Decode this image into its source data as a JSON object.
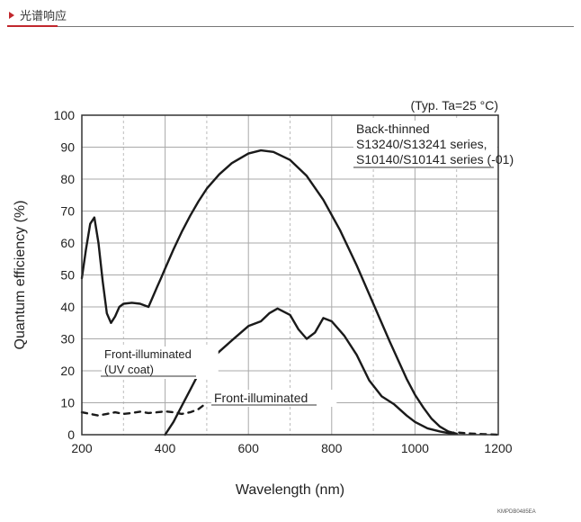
{
  "header": {
    "title": "光谱响应",
    "accent_color": "#c1272d"
  },
  "footer_code": "KMPDB0485EA",
  "chart_data": {
    "type": "line",
    "title": "",
    "condition_label": "(Typ. Ta=25 °C)",
    "xlabel": "Wavelength (nm)",
    "ylabel": "Quantum efficiency (%)",
    "xlim": [
      200,
      1200
    ],
    "ylim": [
      0,
      100
    ],
    "x_ticks": [
      200,
      400,
      600,
      800,
      1000,
      1200
    ],
    "y_ticks": [
      0,
      10,
      20,
      30,
      40,
      50,
      60,
      70,
      80,
      90,
      100
    ],
    "grid": true,
    "series": [
      {
        "labels": [
          "Back-thinned",
          "S13240/S13241 series,",
          "S10140/S10141 series (-01)"
        ],
        "style": "solid",
        "x": [
          200,
          210,
          220,
          230,
          240,
          250,
          260,
          270,
          280,
          290,
          300,
          320,
          340,
          360,
          370,
          380,
          390,
          400,
          420,
          440,
          460,
          480,
          500,
          530,
          560,
          600,
          630,
          660,
          700,
          740,
          780,
          820,
          860,
          900,
          940,
          980,
          1000,
          1020,
          1040,
          1060,
          1080,
          1100
        ],
        "y": [
          49,
          58,
          66,
          68,
          60,
          48,
          38,
          35,
          37,
          40,
          41,
          41.3,
          41,
          40,
          43,
          46,
          49,
          52,
          58,
          63.5,
          68.5,
          73,
          77,
          81.5,
          85,
          88,
          89,
          88.5,
          86,
          81,
          73.5,
          64,
          53,
          41,
          29,
          17.5,
          12.5,
          8.5,
          5,
          2.5,
          1,
          0.3
        ]
      },
      {
        "labels": [
          "Front-illuminated"
        ],
        "style": "solid",
        "x": [
          400,
          420,
          440,
          460,
          480,
          500,
          530,
          560,
          600,
          630,
          650,
          670,
          700,
          720,
          740,
          760,
          780,
          800,
          830,
          860,
          890,
          920,
          950,
          980,
          1000,
          1030,
          1060,
          1080,
          1100
        ],
        "y": [
          0,
          4,
          9,
          14,
          19,
          22.5,
          26,
          29.5,
          34,
          35.5,
          38,
          39.5,
          37.5,
          33,
          30,
          32,
          36.5,
          35.5,
          31,
          25,
          17,
          12,
          9.5,
          6,
          4,
          2,
          1,
          0.5,
          0.2
        ]
      },
      {
        "labels": [
          "Front-illuminated",
          "(UV coat)"
        ],
        "style": "dashed",
        "x": [
          200,
          220,
          240,
          260,
          280,
          300,
          320,
          340,
          360,
          380,
          400,
          420,
          440,
          460,
          480,
          500
        ],
        "y": [
          7,
          6.5,
          6,
          6.5,
          7,
          6.5,
          6.8,
          7.2,
          6.8,
          7,
          7.3,
          7,
          6.5,
          7,
          8,
          10
        ]
      },
      {
        "labels": [],
        "style": "dashed",
        "x": [
          1080,
          1100,
          1130,
          1160,
          1180,
          1200
        ],
        "y": [
          0.6,
          0.7,
          0.4,
          0.2,
          0.1,
          0
        ]
      }
    ]
  }
}
